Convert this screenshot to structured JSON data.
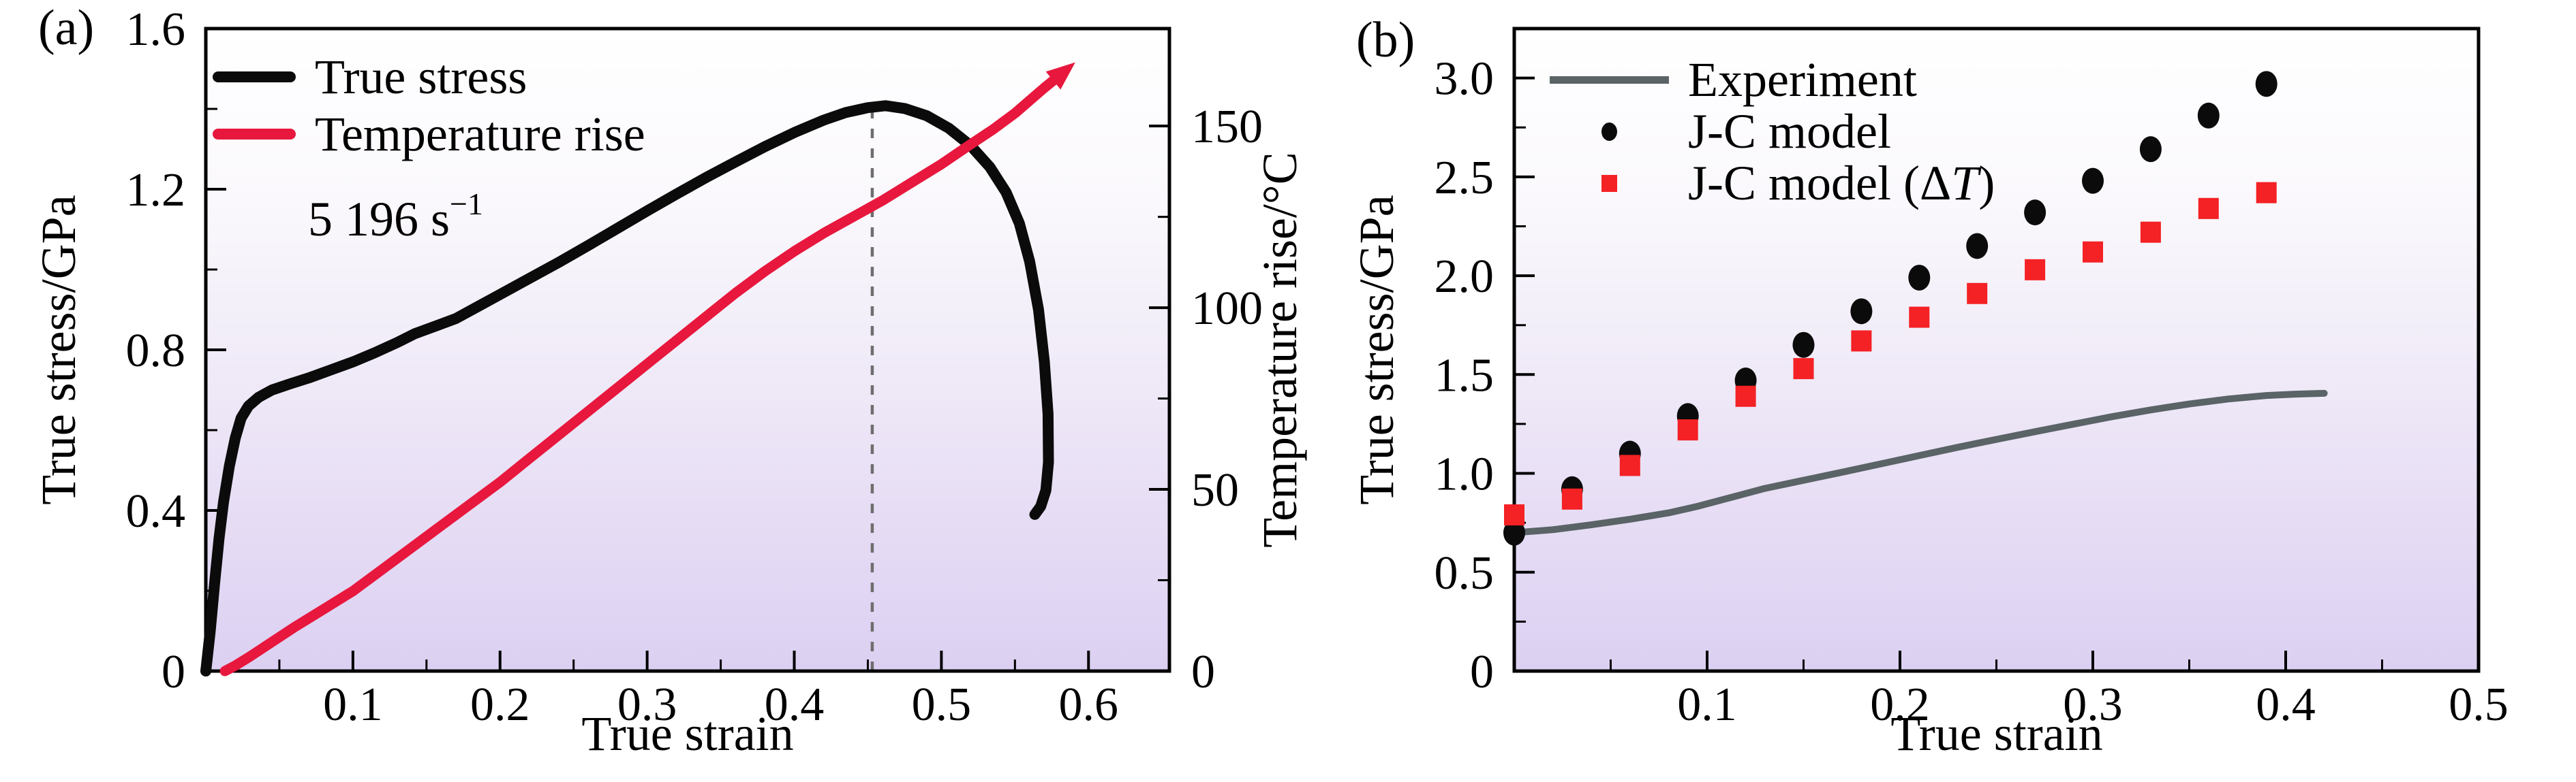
{
  "figure": {
    "panel_a": {
      "tag": "(a)",
      "xlabel": "True strain",
      "ylabel": "True stress/GPa",
      "ylabel_right": "Temperature rise/°C",
      "annotation_text": "5 196 s",
      "annotation_sup": "−1",
      "legend": {
        "item1": "True stress",
        "item2": "Temperature rise"
      }
    },
    "panel_b": {
      "tag": "(b)",
      "xlabel": "True strain",
      "ylabel": "True stress/GPa",
      "legend": {
        "item1": "Experiment",
        "item2": "J-C model",
        "item3_prefix": "J-C model (Δ",
        "item3_italic": "T",
        "item3_suffix": ")"
      }
    }
  },
  "colors": {
    "true_stress": "#0b0b0b",
    "temperature_rise": "#e8173d",
    "experiment": "#5a6366",
    "jc_model": "#0b0b0b",
    "jc_model_dt": "#f42125",
    "dashed_guide": "#6e6e6e",
    "axis": "#000000",
    "gradient_top": "#ffffff",
    "gradient_bottom": "#dcd0f2"
  },
  "chart_data": [
    {
      "panel": "a",
      "type": "line",
      "title": "",
      "xlabel": "True strain",
      "ylabel_left": "True stress/GPa",
      "ylabel_right": "Temperature rise/°C",
      "annotation": "5 196 s⁻¹",
      "legend_position": "upper left",
      "grid": false,
      "xlim": [
        0,
        0.655
      ],
      "ylim_left": [
        0,
        1.6
      ],
      "ylim_right": [
        0,
        176.8
      ],
      "xticks": [
        0.1,
        0.2,
        0.3,
        0.4,
        0.5,
        0.6
      ],
      "xtick_labels": [
        "0.1",
        "0.2",
        "0.3",
        "0.4",
        "0.5",
        "0.6"
      ],
      "xticks_minor": [
        0.05,
        0.15,
        0.25,
        0.35,
        0.45,
        0.55
      ],
      "yticks_left": [
        0,
        0.4,
        0.8,
        1.2,
        1.6
      ],
      "ytick_labels_left": [
        "0",
        "0.4",
        "0.8",
        "1.2",
        "1.6"
      ],
      "yticks_left_minor": [
        0.2,
        0.6,
        1.0,
        1.4
      ],
      "yticks_right": [
        0,
        50,
        100,
        150
      ],
      "ytick_labels_right": [
        "0",
        "50",
        "100",
        "150"
      ],
      "yticks_right_minor": [
        25,
        75,
        125
      ],
      "guide_x": 0.453,
      "guide_top": 1.404,
      "background_gradient": [
        "#ffffff",
        "#faf8fc",
        "#f1ecf8",
        "#e8dff5",
        "#dcd0f2"
      ],
      "series": [
        {
          "name": "True stress",
          "type": "line",
          "axis": "left",
          "color": "#0b0b0b",
          "width": 16,
          "points": [
            [
              0,
              0
            ],
            [
              0.003,
              0.1
            ],
            [
              0.006,
              0.22
            ],
            [
              0.009,
              0.33
            ],
            [
              0.012,
              0.42
            ],
            [
              0.016,
              0.51
            ],
            [
              0.02,
              0.58
            ],
            [
              0.024,
              0.63
            ],
            [
              0.029,
              0.66
            ],
            [
              0.036,
              0.682
            ],
            [
              0.045,
              0.7
            ],
            [
              0.057,
              0.715
            ],
            [
              0.07,
              0.73
            ],
            [
              0.085,
              0.75
            ],
            [
              0.1,
              0.77
            ],
            [
              0.115,
              0.793
            ],
            [
              0.13,
              0.818
            ],
            [
              0.142,
              0.84
            ],
            [
              0.156,
              0.859
            ],
            [
              0.17,
              0.878
            ],
            [
              0.185,
              0.908
            ],
            [
              0.2,
              0.938
            ],
            [
              0.22,
              0.978
            ],
            [
              0.24,
              1.018
            ],
            [
              0.26,
              1.06
            ],
            [
              0.28,
              1.103
            ],
            [
              0.3,
              1.146
            ],
            [
              0.32,
              1.188
            ],
            [
              0.34,
              1.229
            ],
            [
              0.36,
              1.268
            ],
            [
              0.38,
              1.306
            ],
            [
              0.4,
              1.341
            ],
            [
              0.42,
              1.372
            ],
            [
              0.435,
              1.391
            ],
            [
              0.45,
              1.403
            ],
            [
              0.462,
              1.408
            ],
            [
              0.475,
              1.401
            ],
            [
              0.49,
              1.383
            ],
            [
              0.505,
              1.352
            ],
            [
              0.52,
              1.308
            ],
            [
              0.533,
              1.255
            ],
            [
              0.544,
              1.192
            ],
            [
              0.553,
              1.115
            ],
            [
              0.56,
              1.02
            ],
            [
              0.566,
              0.9
            ],
            [
              0.57,
              0.77
            ],
            [
              0.5725,
              0.64
            ],
            [
              0.5728,
              0.52
            ],
            [
              0.571,
              0.45
            ],
            [
              0.5675,
              0.41
            ],
            [
              0.5635,
              0.39
            ]
          ]
        },
        {
          "name": "Temperature rise",
          "type": "line",
          "axis": "right",
          "color": "#e8173d",
          "width": 15,
          "arrow_end": true,
          "points": [
            [
              0.013,
              0
            ],
            [
              0.02,
              1.5
            ],
            [
              0.03,
              4
            ],
            [
              0.045,
              8
            ],
            [
              0.06,
              12
            ],
            [
              0.08,
              17
            ],
            [
              0.1,
              22
            ],
            [
              0.12,
              28
            ],
            [
              0.14,
              34
            ],
            [
              0.16,
              40
            ],
            [
              0.18,
              46
            ],
            [
              0.2,
              52
            ],
            [
              0.22,
              58.5
            ],
            [
              0.24,
              65
            ],
            [
              0.26,
              71.5
            ],
            [
              0.28,
              78
            ],
            [
              0.3,
              84.5
            ],
            [
              0.32,
              91
            ],
            [
              0.34,
              97.5
            ],
            [
              0.36,
              104
            ],
            [
              0.38,
              110
            ],
            [
              0.4,
              115.5
            ],
            [
              0.42,
              120.5
            ],
            [
              0.44,
              125
            ],
            [
              0.46,
              129.5
            ],
            [
              0.48,
              134.5
            ],
            [
              0.5,
              139.5
            ],
            [
              0.52,
              145
            ],
            [
              0.535,
              149
            ],
            [
              0.55,
              153.5
            ],
            [
              0.56,
              157
            ],
            [
              0.57,
              160.5
            ],
            [
              0.576,
              162.5
            ]
          ]
        }
      ]
    },
    {
      "panel": "b",
      "type": "mixed",
      "title": "",
      "xlabel": "True strain",
      "ylabel_left": "True stress/GPa",
      "legend_position": "upper left",
      "grid": false,
      "xlim": [
        0,
        0.5
      ],
      "ylim_left": [
        0,
        3.25
      ],
      "xticks": [
        0.1,
        0.2,
        0.3,
        0.4,
        0.5
      ],
      "xtick_labels": [
        "0.1",
        "0.2",
        "0.3",
        "0.4",
        "0.5"
      ],
      "xticks_minor": [
        0.05,
        0.15,
        0.25,
        0.35,
        0.45
      ],
      "yticks_left": [
        0,
        0.5,
        1.0,
        1.5,
        2.0,
        2.5,
        3.0
      ],
      "ytick_labels_left": [
        "0",
        "0.5",
        "1.0",
        "1.5",
        "2.0",
        "2.5",
        "3.0"
      ],
      "yticks_left_minor": [
        0.25,
        0.75,
        1.25,
        1.75,
        2.25,
        2.75
      ],
      "background_gradient": [
        "#ffffff",
        "#faf8fc",
        "#f1ecf8",
        "#e8dff5",
        "#dcd0f2"
      ],
      "series": [
        {
          "name": "Experiment",
          "type": "line",
          "axis": "left",
          "color": "#5a6366",
          "width": 10,
          "points": [
            [
              0,
              0.7
            ],
            [
              0.02,
              0.715
            ],
            [
              0.04,
              0.74
            ],
            [
              0.06,
              0.768
            ],
            [
              0.08,
              0.8
            ],
            [
              0.095,
              0.833
            ],
            [
              0.11,
              0.872
            ],
            [
              0.13,
              0.924
            ],
            [
              0.15,
              0.965
            ],
            [
              0.17,
              1.006
            ],
            [
              0.19,
              1.048
            ],
            [
              0.21,
              1.09
            ],
            [
              0.23,
              1.132
            ],
            [
              0.25,
              1.172
            ],
            [
              0.27,
              1.211
            ],
            [
              0.29,
              1.249
            ],
            [
              0.31,
              1.287
            ],
            [
              0.33,
              1.321
            ],
            [
              0.35,
              1.351
            ],
            [
              0.37,
              1.376
            ],
            [
              0.39,
              1.394
            ],
            [
              0.405,
              1.401
            ],
            [
              0.42,
              1.405
            ]
          ]
        },
        {
          "name": "J-C model",
          "type": "scatter",
          "marker": "circle",
          "axis": "left",
          "color": "#0b0b0b",
          "rx": 16,
          "ry": 19,
          "x": [
            0,
            0.03,
            0.06,
            0.09,
            0.12,
            0.15,
            0.18,
            0.21,
            0.24,
            0.27,
            0.3,
            0.33,
            0.36,
            0.39
          ],
          "y": [
            0.7,
            0.92,
            1.1,
            1.29,
            1.47,
            1.65,
            1.82,
            1.99,
            2.15,
            2.32,
            2.48,
            2.64,
            2.81,
            2.97
          ]
        },
        {
          "name": "J-C model (ΔT)",
          "type": "scatter",
          "marker": "square",
          "axis": "left",
          "color": "#f42125",
          "w": 30,
          "h": 31,
          "x": [
            0,
            0.03,
            0.06,
            0.09,
            0.12,
            0.15,
            0.18,
            0.21,
            0.24,
            0.27,
            0.3,
            0.33,
            0.36,
            0.39
          ],
          "y": [
            0.79,
            0.87,
            1.04,
            1.22,
            1.39,
            1.53,
            1.67,
            1.79,
            1.91,
            2.03,
            2.12,
            2.22,
            2.34,
            2.42
          ]
        }
      ]
    }
  ]
}
